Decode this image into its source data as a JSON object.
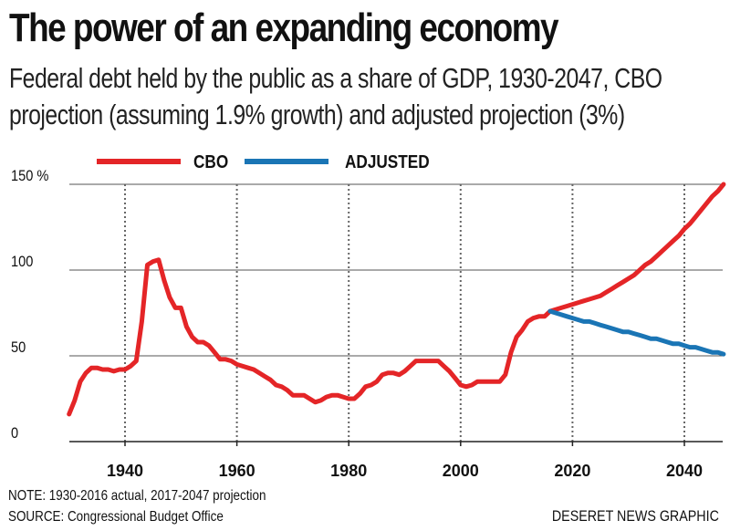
{
  "header": {
    "title": "The power of an expanding economy",
    "subtitle_line1": "Federal debt held by the public as a share of GDP, 1930-2047, CBO",
    "subtitle_line2": "projection (assuming 1.9% growth) and adjusted projection (3%)"
  },
  "footer": {
    "note": "NOTE: 1930-2016 actual, 2017-2047 projection",
    "source": "SOURCE: Congressional Budget Office",
    "credit": "DESERET NEWS GRAPHIC"
  },
  "chart_data": {
    "type": "line",
    "title": "The power of an expanding economy",
    "subtitle": "Federal debt held by the public as a share of GDP, 1930-2047, CBO projection (assuming 1.9% growth) and adjusted projection (3%)",
    "xlabel": "",
    "ylabel": "",
    "xlim": [
      1930,
      2047
    ],
    "ylim": [
      0,
      150
    ],
    "x_ticks": [
      1940,
      1960,
      1980,
      2000,
      2020,
      2040
    ],
    "y_ticks": [
      {
        "value": 0,
        "label": "0"
      },
      {
        "value": 50,
        "label": "50"
      },
      {
        "value": 100,
        "label": "100"
      },
      {
        "value": 150,
        "label": "150 %"
      }
    ],
    "vertical_gridlines": [
      1940,
      1960,
      1980,
      2000,
      2020,
      2040
    ],
    "horizontal_gridlines": [
      0,
      50,
      100,
      150
    ],
    "legend": {
      "placement": "top-left"
    },
    "colors": {
      "CBO": "#e42527",
      "ADJUSTED": "#1a75b5",
      "grid": "#555555"
    },
    "series": [
      {
        "name": "CBO",
        "x": [
          1930,
          1931,
          1932,
          1933,
          1934,
          1935,
          1936,
          1937,
          1938,
          1939,
          1940,
          1941,
          1942,
          1943,
          1944,
          1945,
          1946,
          1947,
          1948,
          1949,
          1950,
          1951,
          1952,
          1953,
          1954,
          1955,
          1956,
          1957,
          1958,
          1959,
          1960,
          1961,
          1962,
          1963,
          1964,
          1965,
          1966,
          1967,
          1968,
          1969,
          1970,
          1971,
          1972,
          1973,
          1974,
          1975,
          1976,
          1977,
          1978,
          1979,
          1980,
          1981,
          1982,
          1983,
          1984,
          1985,
          1986,
          1987,
          1988,
          1989,
          1990,
          1991,
          1992,
          1993,
          1994,
          1995,
          1996,
          1997,
          1998,
          1999,
          2000,
          2001,
          2002,
          2003,
          2004,
          2005,
          2006,
          2007,
          2008,
          2009,
          2010,
          2011,
          2012,
          2013,
          2014,
          2015,
          2016,
          2017,
          2018,
          2019,
          2020,
          2021,
          2022,
          2023,
          2024,
          2025,
          2026,
          2027,
          2028,
          2029,
          2030,
          2031,
          2032,
          2033,
          2034,
          2035,
          2036,
          2037,
          2038,
          2039,
          2040,
          2041,
          2042,
          2043,
          2044,
          2045,
          2046,
          2047
        ],
        "values": [
          16,
          24,
          35,
          40,
          43,
          43,
          42,
          42,
          41,
          42,
          42,
          44,
          47,
          70,
          103,
          105,
          106,
          94,
          84,
          78,
          78,
          67,
          61,
          58,
          58,
          56,
          52,
          48,
          48,
          47,
          45,
          44,
          43,
          42,
          40,
          38,
          36,
          33,
          32,
          30,
          27,
          27,
          27,
          25,
          23,
          24,
          26,
          27,
          27,
          26,
          25,
          25,
          28,
          32,
          33,
          35,
          39,
          40,
          40,
          39,
          41,
          44,
          47,
          47,
          47,
          47,
          47,
          44,
          41,
          37,
          33,
          32,
          33,
          35,
          35,
          35,
          35,
          35,
          39,
          52,
          61,
          65,
          70,
          72,
          73,
          73,
          76,
          77,
          78,
          79,
          80,
          81,
          82,
          83,
          84,
          85,
          87,
          89,
          91,
          93,
          95,
          97,
          100,
          103,
          105,
          108,
          111,
          114,
          117,
          120,
          124,
          127,
          131,
          135,
          139,
          143,
          146,
          150
        ]
      },
      {
        "name": "ADJUSTED",
        "x": [
          2016,
          2017,
          2018,
          2019,
          2020,
          2021,
          2022,
          2023,
          2024,
          2025,
          2026,
          2027,
          2028,
          2029,
          2030,
          2031,
          2032,
          2033,
          2034,
          2035,
          2036,
          2037,
          2038,
          2039,
          2040,
          2041,
          2042,
          2043,
          2044,
          2045,
          2046,
          2047
        ],
        "values": [
          76,
          75,
          74,
          73,
          72,
          71,
          70,
          70,
          69,
          68,
          67,
          66,
          65,
          64,
          64,
          63,
          62,
          61,
          60,
          60,
          59,
          58,
          57,
          57,
          56,
          55,
          55,
          54,
          53,
          52,
          52,
          51
        ]
      }
    ]
  }
}
